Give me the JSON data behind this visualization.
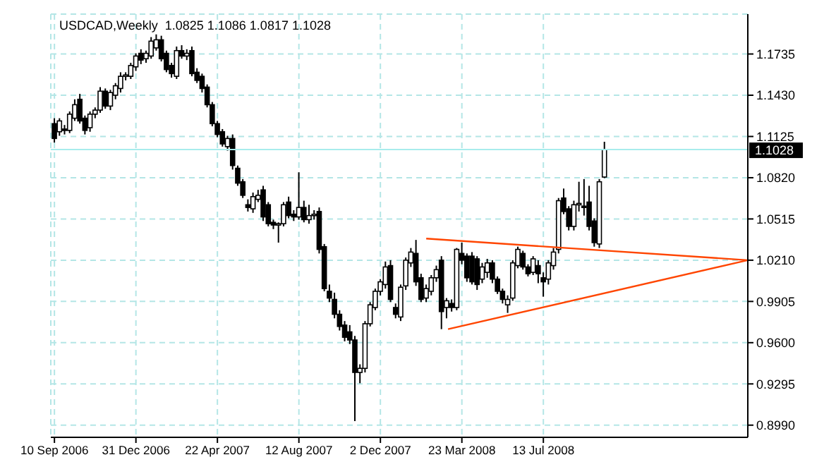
{
  "chart_data": {
    "type": "candlestick",
    "title": "USDCAD,Weekly",
    "subtitle": "1.0825 1.1086 1.0817 1.1028",
    "x": [
      "2006-09-10",
      "2006-09-17",
      "2006-09-24",
      "2006-10-01",
      "2006-10-08",
      "2006-10-15",
      "2006-10-22",
      "2006-10-29",
      "2006-11-05",
      "2006-11-12",
      "2006-11-19",
      "2006-11-26",
      "2006-12-03",
      "2006-12-10",
      "2006-12-17",
      "2006-12-24",
      "2006-12-31",
      "2007-01-07",
      "2007-01-14",
      "2007-01-21",
      "2007-01-28",
      "2007-02-04",
      "2007-02-11",
      "2007-02-18",
      "2007-02-25",
      "2007-03-04",
      "2007-03-11",
      "2007-03-18",
      "2007-03-25",
      "2007-04-01",
      "2007-04-08",
      "2007-04-15",
      "2007-04-22",
      "2007-04-29",
      "2007-05-06",
      "2007-05-13",
      "2007-05-20",
      "2007-05-27",
      "2007-06-03",
      "2007-06-10",
      "2007-06-17",
      "2007-06-24",
      "2007-07-01",
      "2007-07-08",
      "2007-07-15",
      "2007-07-22",
      "2007-07-29",
      "2007-08-05",
      "2007-08-12",
      "2007-08-19",
      "2007-08-26",
      "2007-09-02",
      "2007-09-09",
      "2007-09-16",
      "2007-09-23",
      "2007-09-30",
      "2007-10-07",
      "2007-10-14",
      "2007-10-21",
      "2007-10-28",
      "2007-11-04",
      "2007-11-11",
      "2007-11-18",
      "2007-11-25",
      "2007-12-02",
      "2007-12-09",
      "2007-12-16",
      "2007-12-23",
      "2007-12-30",
      "2008-01-06",
      "2008-01-13",
      "2008-01-20",
      "2008-01-27",
      "2008-02-03",
      "2008-02-10",
      "2008-02-17",
      "2008-02-24",
      "2008-03-02",
      "2008-03-09",
      "2008-03-16",
      "2008-03-23",
      "2008-03-30",
      "2008-04-06",
      "2008-04-13",
      "2008-04-20",
      "2008-04-27",
      "2008-05-04",
      "2008-05-11",
      "2008-05-18",
      "2008-05-25",
      "2008-06-01",
      "2008-06-08",
      "2008-06-15",
      "2008-06-22",
      "2008-06-29",
      "2008-07-06",
      "2008-07-13",
      "2008-07-20",
      "2008-07-27",
      "2008-08-03",
      "2008-08-10",
      "2008-08-17",
      "2008-08-24",
      "2008-08-31",
      "2008-09-07",
      "2008-09-14",
      "2008-09-21",
      "2008-09-28",
      "2008-10-05"
    ],
    "ohlc": [
      [
        1.122,
        1.126,
        1.108,
        1.111
      ],
      [
        1.116,
        1.126,
        1.113,
        1.124
      ],
      [
        1.118,
        1.121,
        1.114,
        1.117
      ],
      [
        1.117,
        1.131,
        1.115,
        1.129
      ],
      [
        1.126,
        1.14,
        1.124,
        1.136
      ],
      [
        1.14,
        1.144,
        1.122,
        1.124
      ],
      [
        1.126,
        1.128,
        1.114,
        1.117
      ],
      [
        1.119,
        1.131,
        1.116,
        1.129
      ],
      [
        1.129,
        1.134,
        1.126,
        1.132
      ],
      [
        1.132,
        1.149,
        1.13,
        1.146
      ],
      [
        1.146,
        1.148,
        1.133,
        1.135
      ],
      [
        1.135,
        1.147,
        1.132,
        1.145
      ],
      [
        1.143,
        1.152,
        1.14,
        1.15
      ],
      [
        1.148,
        1.16,
        1.145,
        1.157
      ],
      [
        1.157,
        1.16,
        1.154,
        1.158
      ],
      [
        1.157,
        1.167,
        1.155,
        1.165
      ],
      [
        1.164,
        1.174,
        1.161,
        1.172
      ],
      [
        1.174,
        1.177,
        1.166,
        1.169
      ],
      [
        1.17,
        1.176,
        1.167,
        1.174
      ],
      [
        1.172,
        1.186,
        1.17,
        1.183
      ],
      [
        1.178,
        1.188,
        1.176,
        1.184
      ],
      [
        1.184,
        1.187,
        1.168,
        1.17
      ],
      [
        1.174,
        1.176,
        1.16,
        1.162
      ],
      [
        1.165,
        1.167,
        1.156,
        1.159
      ],
      [
        1.157,
        1.179,
        1.155,
        1.176
      ],
      [
        1.176,
        1.18,
        1.17,
        1.172
      ],
      [
        1.172,
        1.177,
        1.169,
        1.174
      ],
      [
        1.176,
        1.179,
        1.157,
        1.159
      ],
      [
        1.16,
        1.163,
        1.152,
        1.154
      ],
      [
        1.157,
        1.159,
        1.145,
        1.148
      ],
      [
        1.149,
        1.151,
        1.134,
        1.136
      ],
      [
        1.136,
        1.138,
        1.12,
        1.122
      ],
      [
        1.122,
        1.124,
        1.112,
        1.114
      ],
      [
        1.116,
        1.118,
        1.105,
        1.107
      ],
      [
        1.105,
        1.113,
        1.102,
        1.111
      ],
      [
        1.111,
        1.114,
        1.088,
        1.091
      ],
      [
        1.089,
        1.091,
        1.076,
        1.078
      ],
      [
        1.079,
        1.081,
        1.067,
        1.069
      ],
      [
        1.062,
        1.066,
        1.057,
        1.06
      ],
      [
        1.059,
        1.071,
        1.056,
        1.068
      ],
      [
        1.066,
        1.073,
        1.064,
        1.069
      ],
      [
        1.073,
        1.076,
        1.05,
        1.053
      ],
      [
        1.062,
        1.064,
        1.046,
        1.048
      ],
      [
        1.049,
        1.051,
        1.044,
        1.047
      ],
      [
        1.047,
        1.049,
        1.034,
        1.048
      ],
      [
        1.048,
        1.064,
        1.046,
        1.062
      ],
      [
        1.064,
        1.068,
        1.052,
        1.054
      ],
      [
        1.055,
        1.058,
        1.05,
        1.053
      ],
      [
        1.053,
        1.086,
        1.051,
        1.06
      ],
      [
        1.06,
        1.065,
        1.049,
        1.051
      ],
      [
        1.051,
        1.062,
        1.048,
        1.054
      ],
      [
        1.054,
        1.058,
        1.051,
        1.055
      ],
      [
        1.057,
        1.06,
        1.026,
        1.029
      ],
      [
        1.031,
        1.033,
        0.998,
        1.0
      ],
      [
        0.998,
        1.003,
        0.99,
        0.993
      ],
      [
        0.992,
        0.997,
        0.978,
        0.981
      ],
      [
        0.981,
        0.984,
        0.969,
        0.972
      ],
      [
        0.973,
        0.976,
        0.961,
        0.964
      ],
      [
        0.968,
        0.973,
        0.959,
        0.962
      ],
      [
        0.962,
        0.965,
        0.902,
        0.938
      ],
      [
        0.938,
        0.944,
        0.93,
        0.941
      ],
      [
        0.941,
        0.976,
        0.938,
        0.974
      ],
      [
        0.974,
        0.99,
        0.972,
        0.988
      ],
      [
        0.986,
        1.0,
        0.984,
        0.998
      ],
      [
        0.998,
        1.007,
        0.995,
        1.005
      ],
      [
        1.003,
        1.02,
        1.0,
        1.016
      ],
      [
        1.017,
        1.021,
        0.99,
        0.992
      ],
      [
        0.986,
        0.989,
        0.978,
        0.981
      ],
      [
        0.979,
        1.003,
        0.976,
        1.001
      ],
      [
        1.002,
        1.023,
        0.999,
        1.021
      ],
      [
        1.019,
        1.03,
        1.016,
        1.027
      ],
      [
        1.026,
        1.036,
        1.002,
        1.005
      ],
      [
        1.008,
        1.011,
        0.99,
        0.992
      ],
      [
        0.993,
        1.003,
        0.99,
        1.0
      ],
      [
        0.998,
        1.01,
        0.995,
        1.008
      ],
      [
        1.008,
        1.017,
        1.005,
        1.014
      ],
      [
        1.021,
        1.024,
        0.97,
        0.983
      ],
      [
        0.986,
        0.993,
        0.978,
        0.991
      ],
      [
        0.989,
        0.992,
        0.983,
        0.986
      ],
      [
        0.986,
        1.03,
        0.984,
        1.029
      ],
      [
        1.026,
        1.034,
        1.018,
        1.021
      ],
      [
        1.024,
        1.026,
        1.005,
        1.008
      ],
      [
        1.024,
        1.027,
        1.003,
        1.005
      ],
      [
        1.022,
        1.024,
        0.999,
        1.003
      ],
      [
        1.007,
        1.019,
        1.004,
        1.016
      ],
      [
        1.012,
        1.022,
        1.008,
        1.019
      ],
      [
        1.019,
        1.021,
        1.004,
        1.007
      ],
      [
        1.007,
        1.009,
        0.996,
        0.998
      ],
      [
        0.998,
        1.0,
        0.989,
        0.992
      ],
      [
        0.988,
        0.995,
        0.982,
        0.992
      ],
      [
        0.993,
        1.021,
        0.991,
        1.019
      ],
      [
        1.017,
        1.031,
        1.015,
        1.029
      ],
      [
        1.026,
        1.028,
        1.014,
        1.016
      ],
      [
        1.016,
        1.018,
        1.009,
        1.011
      ],
      [
        1.012,
        1.024,
        1.01,
        1.022
      ],
      [
        1.017,
        1.021,
        1.004,
        1.011
      ],
      [
        1.008,
        1.012,
        0.994,
        1.005
      ],
      [
        1.007,
        1.021,
        1.003,
        1.019
      ],
      [
        1.017,
        1.03,
        1.014,
        1.027
      ],
      [
        1.029,
        1.067,
        1.026,
        1.065
      ],
      [
        1.067,
        1.074,
        1.055,
        1.057
      ],
      [
        1.059,
        1.061,
        1.043,
        1.046
      ],
      [
        1.046,
        1.065,
        1.043,
        1.062
      ],
      [
        1.062,
        1.079,
        1.057,
        1.063
      ],
      [
        1.061,
        1.081,
        1.054,
        1.06
      ],
      [
        1.064,
        1.076,
        1.043,
        1.046
      ],
      [
        1.05,
        1.052,
        1.031,
        1.034
      ],
      [
        1.033,
        1.081,
        1.03,
        1.079
      ],
      [
        1.0825,
        1.1086,
        1.0817,
        1.1028
      ]
    ],
    "xlim": [
      "2006-09-05",
      "2009-04-20"
    ],
    "xticks": [
      {
        "value": "2006-09-10",
        "label": "10 Sep 2006"
      },
      {
        "value": "2006-12-31",
        "label": "31 Dec 2006"
      },
      {
        "value": "2007-04-22",
        "label": "22 Apr 2007"
      },
      {
        "value": "2007-08-12",
        "label": "12 Aug 2007"
      },
      {
        "value": "2007-12-02",
        "label": "2 Dec 2007"
      },
      {
        "value": "2008-03-23",
        "label": "23 Mar 2008"
      },
      {
        "value": "2008-07-13",
        "label": "13 Jul 2008"
      }
    ],
    "ylim": [
      0.89,
      1.203
    ],
    "yticks": [
      {
        "value": 0.899,
        "label": "0.8990"
      },
      0.9295,
      {
        "value": 0.96,
        "label": "0.9600"
      },
      0.9905,
      {
        "value": 1.021,
        "label": "1.0210"
      },
      1.0515,
      {
        "value": 1.082,
        "label": "1.0820"
      },
      1.1125,
      {
        "value": 1.143,
        "label": "1.1430"
      },
      1.1735
    ],
    "grid": true,
    "ref_lines": [
      {
        "axis": "y",
        "value": 1.1028,
        "label": "1.1028",
        "color": "#a8ecec"
      }
    ],
    "series": [
      {
        "type": "line",
        "color": "#ff4500",
        "x": [
          "2008-02-03",
          "2009-04-20"
        ],
        "values": [
          1.037,
          1.021
        ]
      },
      {
        "type": "line",
        "color": "#ff4500",
        "x": [
          "2008-03-04",
          "2009-04-20"
        ],
        "values": [
          0.97,
          1.021
        ]
      }
    ]
  }
}
